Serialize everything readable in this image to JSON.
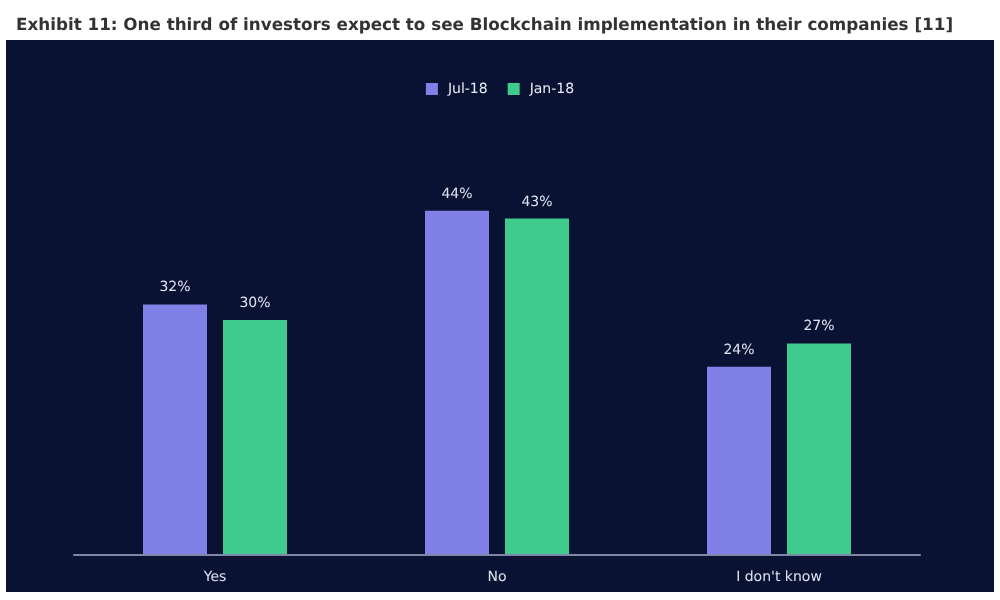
{
  "chart_data": {
    "type": "bar",
    "title": "Exhibit 11: One third of investors expect to see Blockchain implementation in their companies [11]",
    "categories": [
      "Yes",
      "No",
      "I don't know"
    ],
    "series": [
      {
        "name": "Jul-18",
        "color": "#8180e6",
        "values": [
          32,
          44,
          24
        ],
        "value_labels": [
          "32%",
          "44%",
          "24%"
        ]
      },
      {
        "name": "Jan-18",
        "color": "#3ecb8d",
        "values": [
          30,
          43,
          27
        ],
        "value_labels": [
          "30%",
          "43%",
          "27%"
        ]
      }
    ],
    "legend": "top"
  }
}
